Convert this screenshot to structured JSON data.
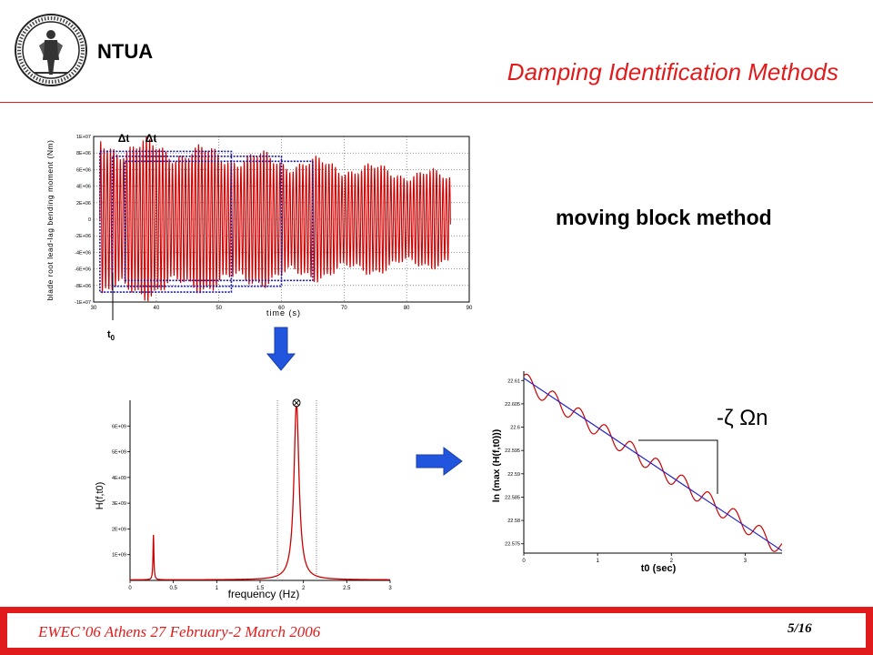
{
  "header": {
    "org": "NTUA",
    "title": "Damping Identification Methods"
  },
  "method_label": "moving block method",
  "footer": {
    "event": "EWEC’06 Athens 27 February-2 March 2006",
    "page": "5/16"
  },
  "icons": [
    "ntua-logo-icon",
    "down-arrow-icon",
    "right-arrow-icon",
    "peak-marker-icon"
  ],
  "colors": {
    "accent": "#e11b1b",
    "series": "#cc0000",
    "block": "#1a1aa8",
    "fit": "#2222cc",
    "arrow": "#2255dd"
  },
  "chart_data": [
    {
      "type": "line",
      "ylabel": "blade root lead-lag bending moment (Nm)",
      "xlabel": "time (s)",
      "xlim": [
        30,
        90
      ],
      "ylim": [
        -10000000,
        10000000
      ],
      "x_ticks": [
        "30",
        "40",
        "50",
        "60",
        "70",
        "80",
        "90"
      ],
      "y_ticks": [
        "-1E+07",
        "-8E+06",
        "-6E+06",
        "-4E+06",
        "-2E+06",
        "0",
        "2E+06",
        "4E+06",
        "6E+06",
        "8E+06",
        "1E+07"
      ],
      "grid": true,
      "signal": {
        "t_start": 31,
        "t_end": 87,
        "frequency_hz": 1.92,
        "amplitude_start": 9000000,
        "amplitude_end": 5000000
      },
      "blocks": [
        [
          31,
          52
        ],
        [
          33,
          60
        ],
        [
          35,
          65
        ]
      ],
      "annotations": {
        "delta_t": [
          "Δt",
          "Δt"
        ],
        "t0": "t",
        "t0_sub": "0"
      }
    },
    {
      "type": "line",
      "ylabel": "H(f,t0)",
      "xlabel": "frequency (Hz)",
      "xlim": [
        0,
        3
      ],
      "ylim": [
        0,
        7000000000
      ],
      "x_ticks": [
        "0",
        "0.5",
        "1",
        "1.5",
        "2",
        "2.5",
        "3"
      ],
      "y_ticks": [
        "1E+09",
        "2E+09",
        "3E+09",
        "4E+09",
        "5E+09",
        "6E+09"
      ],
      "peaks": [
        {
          "frequency": 1.92,
          "value": 6900000000,
          "halfwidth": 0.035
        },
        {
          "frequency": 0.27,
          "value": 1750000000,
          "halfwidth": 0.006
        }
      ],
      "window_lines": [
        1.7,
        2.15
      ]
    },
    {
      "type": "line",
      "ylabel": "ln (max (H(f,t0)))",
      "xlabel": "t0 (sec)",
      "xlim": [
        0,
        3.5
      ],
      "ylim": [
        22.573,
        22.612
      ],
      "x_ticks": [
        "0",
        "1",
        "2",
        "3"
      ],
      "y_ticks": [
        "22.575",
        "22.58",
        "22.585",
        "22.59",
        "22.595",
        "22.6",
        "22.605",
        "22.61"
      ],
      "series": [
        {
          "name": "",
          "kind": "oscillating",
          "start": 22.61,
          "end": 22.574,
          "oscillation_amplitude": 0.0018,
          "oscillations": 10
        },
        {
          "name": "",
          "kind": "linear-fit",
          "points": [
            [
              0,
              22.6105
            ],
            [
              3.5,
              22.5735
            ]
          ]
        }
      ],
      "annotation": "-ζ Ωn"
    }
  ]
}
